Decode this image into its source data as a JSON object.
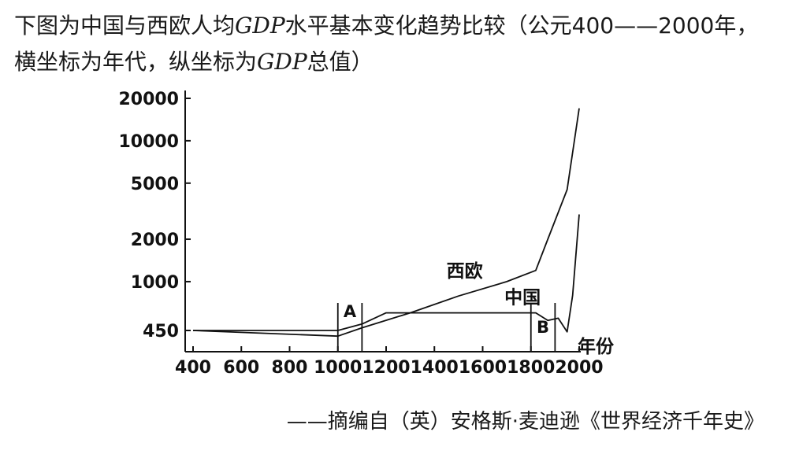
{
  "caption": {
    "before_gdp_1": "下图为中国与西欧人均",
    "gdp_1": "GDP",
    "middle": "水平基本变化趋势比较（公元400——2000年，横坐标为年代，纵坐标为",
    "gdp_2": "GDP",
    "after_gdp_2": "总值）"
  },
  "source": "——摘编自（英）安格斯·麦迪逊《世界经济千年史》",
  "chart_data": {
    "type": "line",
    "title": "",
    "xlabel": "年份",
    "ylabel": "",
    "y_scale": "log",
    "xlim": [
      400,
      2000
    ],
    "ylim": [
      450,
      20000
    ],
    "x_ticks": [
      "400",
      "600",
      "800",
      "1000",
      "1200",
      "1400",
      "1600",
      "1800",
      "2000"
    ],
    "y_ticks": [
      "450",
      "1000",
      "2000",
      "5000",
      "10000",
      "20000"
    ],
    "series": [
      {
        "name": "西欧",
        "points": [
          [
            400,
            450
          ],
          [
            1000,
            410
          ],
          [
            1100,
            470
          ],
          [
            1300,
            600
          ],
          [
            1500,
            790
          ],
          [
            1700,
            1000
          ],
          [
            1820,
            1200
          ],
          [
            1870,
            2000
          ],
          [
            1950,
            4500
          ],
          [
            2000,
            17000
          ]
        ]
      },
      {
        "name": "中国",
        "points": [
          [
            400,
            450
          ],
          [
            1000,
            450
          ],
          [
            1100,
            500
          ],
          [
            1200,
            600
          ],
          [
            1300,
            600
          ],
          [
            1500,
            600
          ],
          [
            1820,
            600
          ],
          [
            1870,
            530
          ],
          [
            1913,
            550
          ],
          [
            1950,
            440
          ],
          [
            1973,
            800
          ],
          [
            2000,
            3000
          ]
        ]
      }
    ],
    "markers": [
      {
        "label": "A",
        "x_start": 1000,
        "x_end": 1100
      },
      {
        "label": "B",
        "x_start": 1800,
        "x_end": 1900
      }
    ],
    "grid": false,
    "legend": "none"
  }
}
